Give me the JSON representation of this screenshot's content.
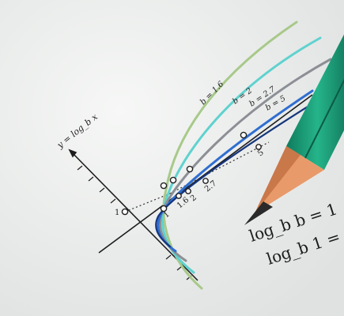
{
  "axis": {
    "y_label": "y = log_b x",
    "y_tick_1": "1"
  },
  "x_ticks": [
    "1",
    "1.6",
    "2",
    "2.7"
  ],
  "x_tick_far": "5",
  "curve_labels": [
    "b = 1.6",
    "b = 2",
    "b = 2.7",
    "b = 5"
  ],
  "equations": {
    "line1": "log_b b = 1",
    "line2": "log_b 1 = 0"
  },
  "colors": {
    "paper": "#eef0ef",
    "curve_b_1_6": "#a8c98a",
    "curve_b_2": "#5fd2cf",
    "curve_b_2_7": "#8c8f95",
    "curve_b_5": "#2f6ed0",
    "pencil_body": "#1fa27d",
    "pencil_wood": "#e89a6a",
    "pencil_lead": "#2a2a2a"
  },
  "icons": [
    "pencil-icon"
  ]
}
